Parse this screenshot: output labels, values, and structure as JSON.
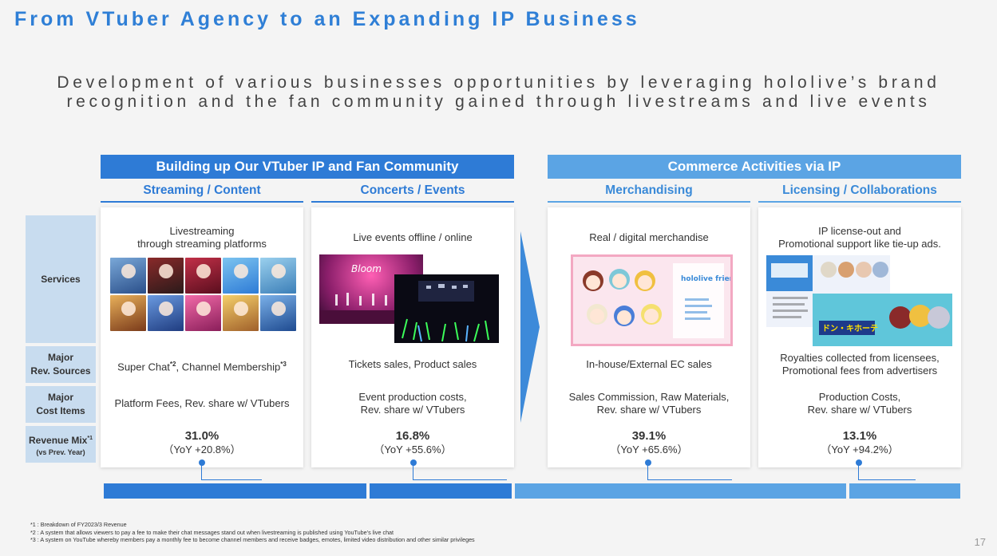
{
  "title": "From VTuber Agency to an Expanding IP Business",
  "subtitle": {
    "line1": "Development of various businesses opportunities by leveraging hololive’s brand",
    "line2": "recognition and the fan community gained through livestreams and live events"
  },
  "sections": {
    "left": "Building up Our VTuber IP and Fan Community",
    "right": "Commerce Activities via IP"
  },
  "columns": [
    {
      "header": "Streaming / Content",
      "services": "Livestreaming\nthrough streaming platforms",
      "revenue_sources_a": "Super Chat",
      "revenue_sources_a_sup": "*2",
      "revenue_sources_b": ", Channel Membership",
      "revenue_sources_b_sup": "*3",
      "cost_items": "Platform Fees, Rev. share w/ VTubers",
      "mix_pct": "31.0%",
      "mix_yoy": "（YoY +20.8%）"
    },
    {
      "header": "Concerts / Events",
      "services": "Live events offline / online",
      "revenue_sources": "Tickets sales, Product sales",
      "cost_items": "Event production costs,\nRev. share w/ VTubers",
      "mix_pct": "16.8%",
      "mix_yoy": "（YoY +55.6%）"
    },
    {
      "header": "Merchandising",
      "services": "Real / digital merchandise",
      "revenue_sources": "In-house/External EC sales",
      "cost_items": "Sales Commission, Raw Materials,\nRev. share w/ VTubers",
      "mix_pct": "39.1%",
      "mix_yoy": "（YoY +65.6%）"
    },
    {
      "header": "Licensing / Collaborations",
      "services": "IP license-out and\nPromotional support like tie-up ads.",
      "revenue_sources": "Royalties collected from licensees,\nPromotional fees from advertisers",
      "cost_items": "Production Costs,\nRev. share w/ VTubers",
      "mix_pct": "13.1%",
      "mix_yoy": "（YoY +94.2%）"
    }
  ],
  "row_labels": {
    "services": "Services",
    "major_rev_1": "Major",
    "major_rev_2": "Rev. Sources",
    "major_cost_1": "Major",
    "major_cost_2": "Cost Items",
    "revenue_mix": "Revenue Mix",
    "revenue_mix_sup": "*1",
    "revenue_mix_sub": "(vs Prev. Year)"
  },
  "revenue_mix_bar": [
    {
      "pct": 31.0,
      "color": "#2e7bd6"
    },
    {
      "pct": 16.8,
      "color": "#2e7bd6"
    },
    {
      "pct": 39.1,
      "color": "#5ba4e4"
    },
    {
      "pct": 13.1,
      "color": "#5ba4e4"
    }
  ],
  "footnotes": [
    "*1 : Breakdown of FY2023/3 Revenue",
    "*2 : A system that allows viewers to pay a fee to make their chat messages stand out when livestreaming is published using YouTube’s live chat",
    "*3 : A system on YouTube whereby members pay a monthly fee to become channel members and receive badges, emotes, limited video distribution and other similar privileges"
  ],
  "merch_image": {
    "brand": "hololive friends"
  },
  "license_image": {
    "brand": "ドン・キホーテ"
  },
  "page_number": "17",
  "colors": {
    "accent": "#2e7bd6",
    "accent_light": "#5ba4e4",
    "label_bg": "#c8dcef"
  }
}
